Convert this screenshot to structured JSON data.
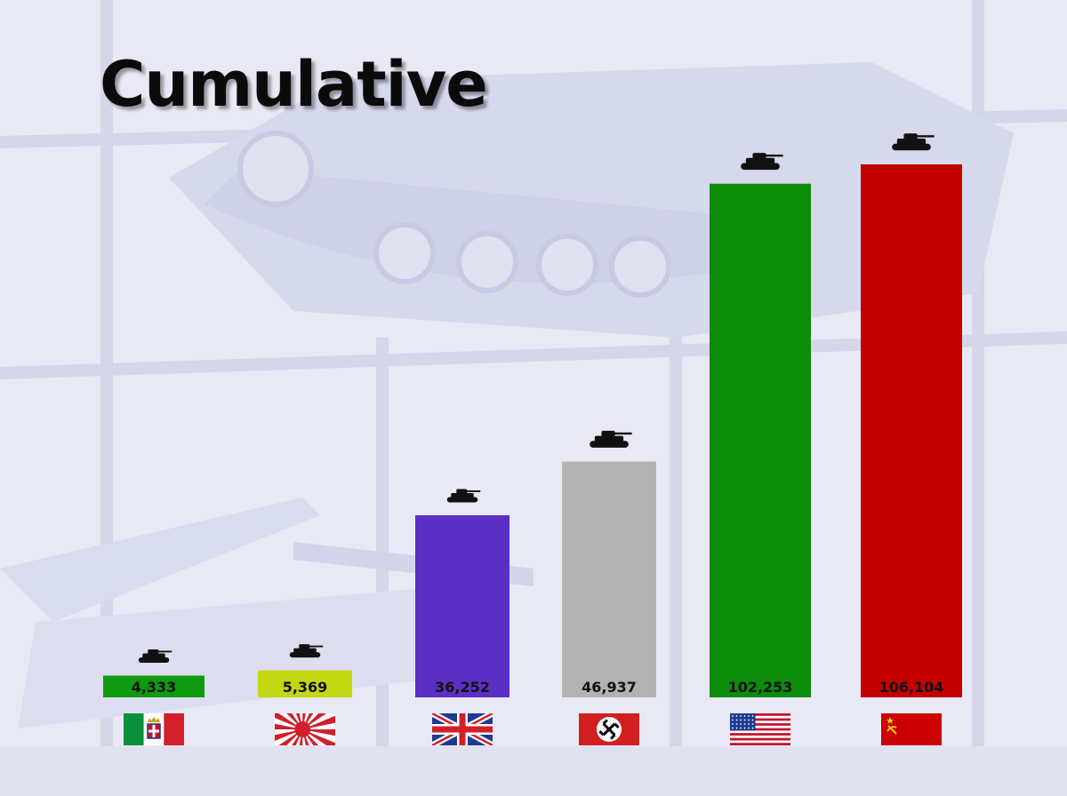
{
  "title": "Cumulative",
  "chart_data": {
    "type": "bar",
    "categories": [
      "Italy",
      "Japan",
      "United Kingdom",
      "Germany",
      "United States",
      "Soviet Union"
    ],
    "values": [
      4333,
      5369,
      36252,
      46937,
      102253,
      106104
    ],
    "value_labels": [
      "4,333",
      "5,369",
      "36,252",
      "46,937",
      "102,253",
      "106,104"
    ],
    "bar_colors": [
      "#0f9a0f",
      "#c3d812",
      "#5b2fc4",
      "#b2b2b2",
      "#0b8c0b",
      "#c30000"
    ],
    "category_icons": [
      "flag-italy-icon",
      "flag-japan-icon",
      "flag-uk-icon",
      "flag-germany-icon",
      "flag-usa-icon",
      "flag-ussr-icon"
    ],
    "marker_icon": "tank-icon",
    "ylim": [
      0,
      110000
    ],
    "grid": false,
    "legend": "none"
  }
}
